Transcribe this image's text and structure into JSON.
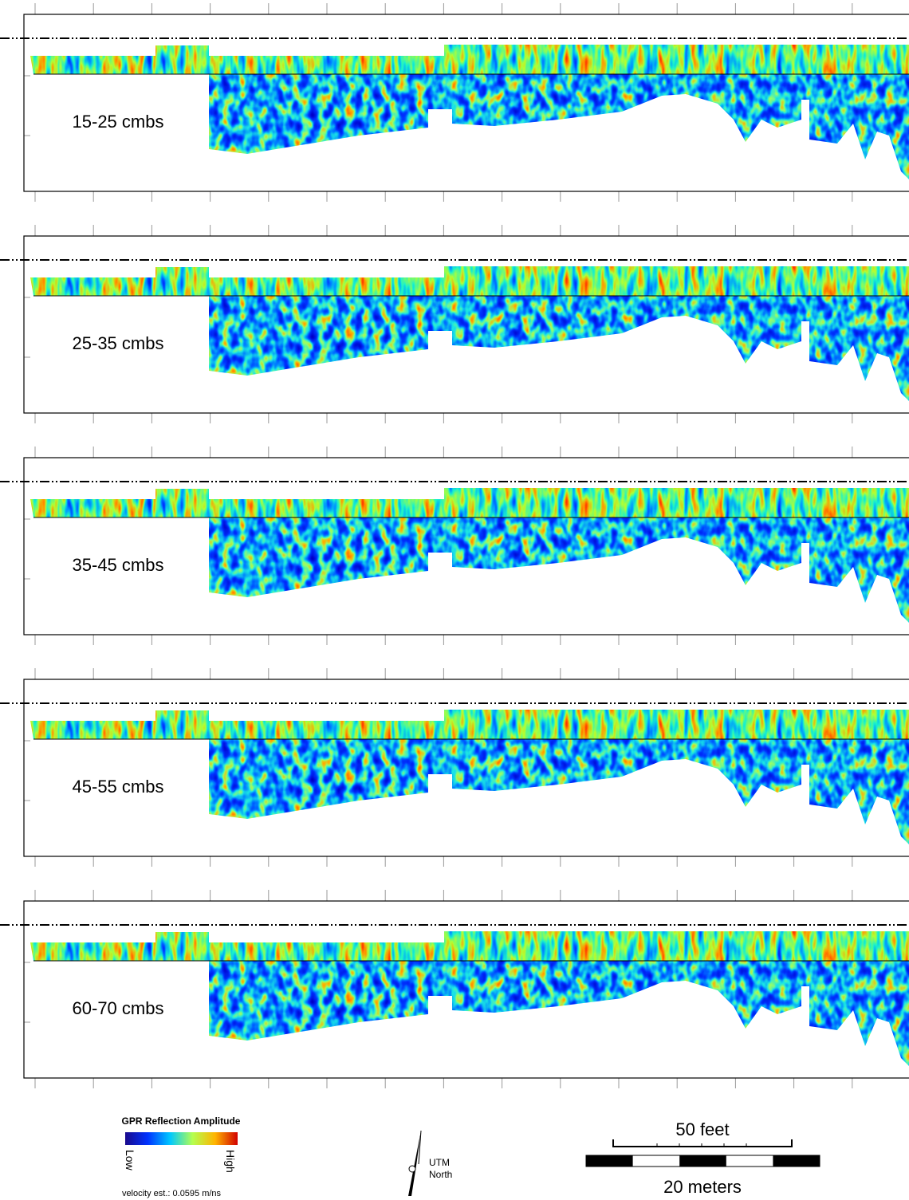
{
  "panels": [
    {
      "label": "15-25 cmbs"
    },
    {
      "label": "25-35 cmbs"
    },
    {
      "label": "35-45 cmbs"
    },
    {
      "label": "45-55 cmbs"
    },
    {
      "label": "60-70 cmbs"
    }
  ],
  "legend": {
    "title": "GPR Reflection Amplitude",
    "low": "Low",
    "high": "High",
    "velocity": "velocity est.: 0.0595 m/ns"
  },
  "north_arrow": {
    "line1": "UTM",
    "line2": "North"
  },
  "scale_bar": {
    "top_label": "50 feet",
    "bottom_label": "20 meters"
  }
}
